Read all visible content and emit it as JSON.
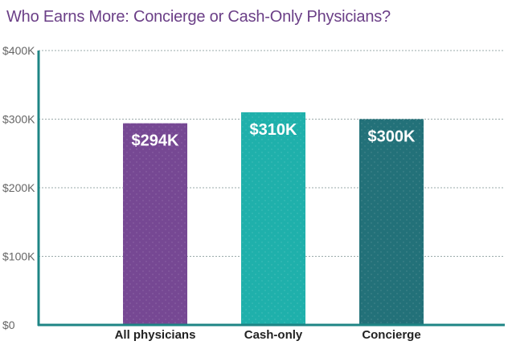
{
  "chart_data": {
    "type": "bar",
    "title": "Who Earns More: Concierge or Cash-Only Physicians?",
    "xlabel": "",
    "ylabel": "",
    "categories": [
      "All physicians",
      "Cash-only",
      "Concierge"
    ],
    "values": [
      294000,
      310000,
      300000
    ],
    "data_labels": [
      "$294K",
      "$310K",
      "$300K"
    ],
    "bar_colors": [
      "#764893",
      "#1fb0ab",
      "#237179"
    ],
    "ylim": [
      0,
      400000
    ],
    "yticks": [
      0,
      100000,
      200000,
      300000,
      400000
    ],
    "ytick_labels": [
      "$0",
      "$100K",
      "$200K",
      "$300K",
      "$400K"
    ],
    "grid": true,
    "legend": "none"
  },
  "colors": {
    "title": "#6b3f87",
    "axis": "#1e8585",
    "grid": "#9aa9a9",
    "tick_label": "#666666",
    "category_label": "#222222",
    "value_label": "#ffffff"
  }
}
